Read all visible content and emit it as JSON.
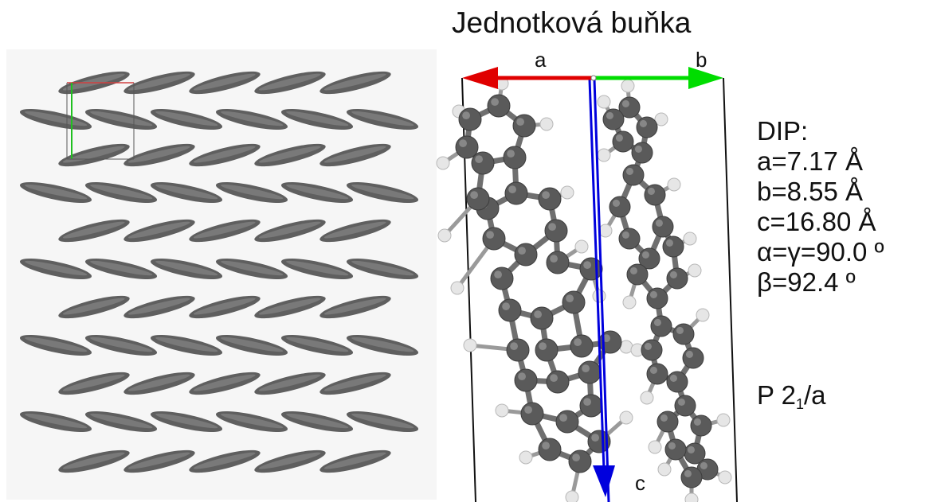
{
  "title": "Jednotková buňka",
  "axes": {
    "a": "a",
    "b": "b",
    "c": "c"
  },
  "colors": {
    "a_axis": "#e00000",
    "b_axis": "#00dd00",
    "c_axis": "#0000dd",
    "carbon": "#5a5a5a",
    "hydrogen": "#e6e6e6"
  },
  "params": {
    "name": "DIP:",
    "a": "a=7.17 Å",
    "b": "b=8.55 Å",
    "c": "c=16.80 Å",
    "alpha_gamma": "α=γ=90.0 º",
    "beta": "β=92.4 º"
  },
  "space_group": {
    "prefix": "P 2",
    "subscript": "1",
    "suffix": "/a"
  }
}
